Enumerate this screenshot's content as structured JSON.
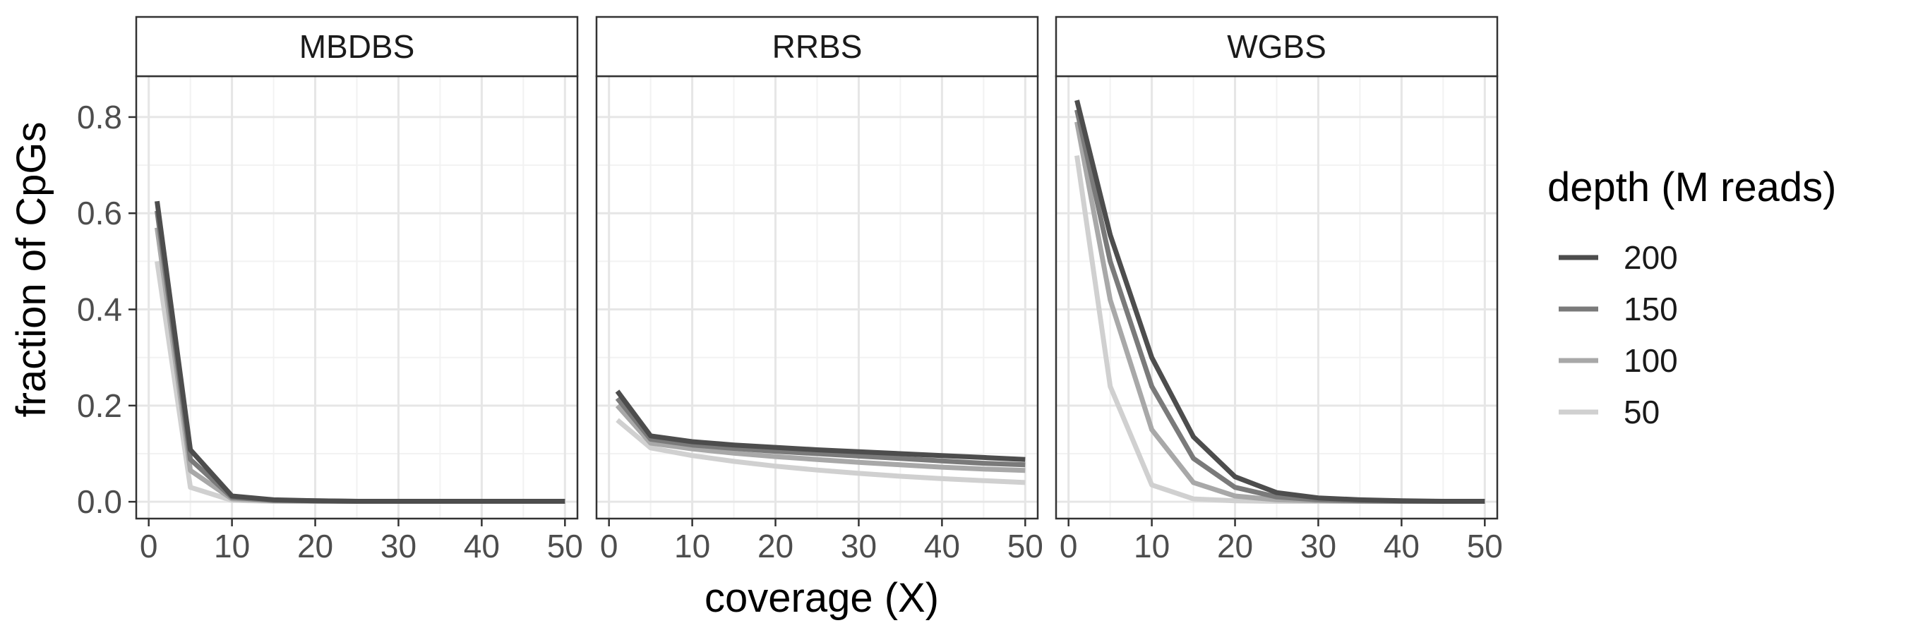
{
  "chart_data": {
    "type": "line",
    "xlabel": "coverage (X)",
    "ylabel": "fraction of CpGs",
    "xlim": [
      -1.5,
      51.5
    ],
    "ylim": [
      -0.035,
      0.885
    ],
    "x_ticks": [
      "0",
      "10",
      "20",
      "30",
      "40",
      "50"
    ],
    "y_ticks": [
      "0.0",
      "0.2",
      "0.4",
      "0.6",
      "0.8"
    ],
    "grid": true,
    "legend": {
      "title": "depth (M reads)",
      "position": "right",
      "entries": [
        "200",
        "150",
        "100",
        "50"
      ]
    },
    "series_colors": {
      "200": "#4d4d4d",
      "150": "#7a7a7a",
      "100": "#a8a8a8",
      "50": "#d0d0d0"
    },
    "x": [
      1,
      5,
      10,
      15,
      20,
      25,
      30,
      35,
      40,
      45,
      50
    ],
    "panels": [
      {
        "title": "MBDBS",
        "series": [
          {
            "name": "200",
            "values": [
              0.625,
              0.108,
              0.012,
              0.004,
              0.002,
              0.001,
              0.001,
              0.001,
              0.001,
              0.001,
              0.001
            ]
          },
          {
            "name": "150",
            "values": [
              0.605,
              0.088,
              0.009,
              0.003,
              0.002,
              0.001,
              0.001,
              0.001,
              0.001,
              0.001,
              0.001
            ]
          },
          {
            "name": "100",
            "values": [
              0.57,
              0.065,
              0.006,
              0.002,
              0.001,
              0.001,
              0.001,
              0.001,
              0.001,
              0.001,
              0.001
            ]
          },
          {
            "name": "50",
            "values": [
              0.5,
              0.03,
              0.003,
              0.001,
              0.001,
              0.001,
              0.001,
              0.001,
              0.001,
              0.001,
              0.001
            ]
          }
        ]
      },
      {
        "title": "RRBS",
        "series": [
          {
            "name": "200",
            "values": [
              0.23,
              0.137,
              0.125,
              0.118,
              0.113,
              0.108,
              0.104,
              0.1,
              0.096,
              0.092,
              0.088
            ]
          },
          {
            "name": "150",
            "values": [
              0.215,
              0.13,
              0.118,
              0.111,
              0.105,
              0.1,
              0.095,
              0.09,
              0.085,
              0.08,
              0.077
            ]
          },
          {
            "name": "100",
            "values": [
              0.2,
              0.122,
              0.11,
              0.101,
              0.094,
              0.088,
              0.082,
              0.077,
              0.072,
              0.068,
              0.065
            ]
          },
          {
            "name": "50",
            "values": [
              0.17,
              0.112,
              0.096,
              0.084,
              0.074,
              0.066,
              0.059,
              0.053,
              0.048,
              0.044,
              0.04
            ]
          }
        ]
      },
      {
        "title": "WGBS",
        "series": [
          {
            "name": "200",
            "values": [
              0.835,
              0.555,
              0.3,
              0.135,
              0.052,
              0.019,
              0.008,
              0.004,
              0.002,
              0.001,
              0.001
            ]
          },
          {
            "name": "150",
            "values": [
              0.815,
              0.5,
              0.24,
              0.09,
              0.03,
              0.01,
              0.004,
              0.002,
              0.001,
              0.001,
              0.001
            ]
          },
          {
            "name": "100",
            "values": [
              0.79,
              0.42,
              0.15,
              0.04,
              0.012,
              0.004,
              0.002,
              0.001,
              0.001,
              0.001,
              0.001
            ]
          },
          {
            "name": "50",
            "values": [
              0.72,
              0.24,
              0.035,
              0.006,
              0.002,
              0.001,
              0.001,
              0.001,
              0.001,
              0.001,
              0.001
            ]
          }
        ]
      }
    ]
  }
}
